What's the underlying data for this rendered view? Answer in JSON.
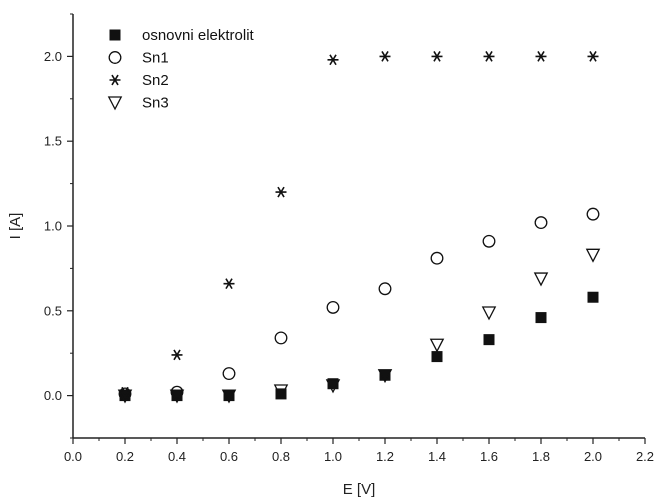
{
  "chart_data": {
    "type": "scatter",
    "xlabel": "E [V]",
    "ylabel": "I [A]",
    "xlim": [
      0.0,
      2.2
    ],
    "ylim": [
      -0.25,
      2.25
    ],
    "x_ticks": [
      "0.0",
      "0.2",
      "0.4",
      "0.6",
      "0.8",
      "1.0",
      "1.2",
      "1.4",
      "1.6",
      "1.8",
      "2.0",
      "2.2"
    ],
    "y_ticks": [
      "0.0",
      "0.5",
      "1.0",
      "1.5",
      "2.0"
    ],
    "grid": false,
    "legend_position": "top-left",
    "series": [
      {
        "name": "osnovni elektrolit",
        "marker": "filled-square",
        "x": [
          0.2,
          0.4,
          0.6,
          0.8,
          1.0,
          1.2,
          1.4,
          1.6,
          1.8,
          2.0
        ],
        "y": [
          0.0,
          0.0,
          0.0,
          0.01,
          0.07,
          0.12,
          0.23,
          0.33,
          0.46,
          0.58
        ]
      },
      {
        "name": "Sn1",
        "marker": "open-circle",
        "x": [
          0.2,
          0.4,
          0.6,
          0.8,
          1.0,
          1.2,
          1.4,
          1.6,
          1.8,
          2.0
        ],
        "y": [
          0.01,
          0.02,
          0.13,
          0.34,
          0.52,
          0.63,
          0.81,
          0.91,
          1.02,
          1.07
        ]
      },
      {
        "name": "Sn2",
        "marker": "asterisk",
        "x": [
          0.2,
          0.4,
          0.6,
          0.8,
          1.0,
          1.2,
          1.4,
          1.6,
          1.8,
          2.0
        ],
        "y": [
          0.02,
          0.24,
          0.66,
          1.2,
          1.98,
          2.0,
          2.0,
          2.0,
          2.0,
          2.0
        ]
      },
      {
        "name": "Sn3",
        "marker": "open-triangle-down",
        "x": [
          0.2,
          0.4,
          0.6,
          0.8,
          1.0,
          1.2,
          1.4,
          1.6,
          1.8,
          2.0
        ],
        "y": [
          0.0,
          0.0,
          0.0,
          0.03,
          0.06,
          0.12,
          0.3,
          0.49,
          0.69,
          0.83
        ]
      }
    ]
  }
}
